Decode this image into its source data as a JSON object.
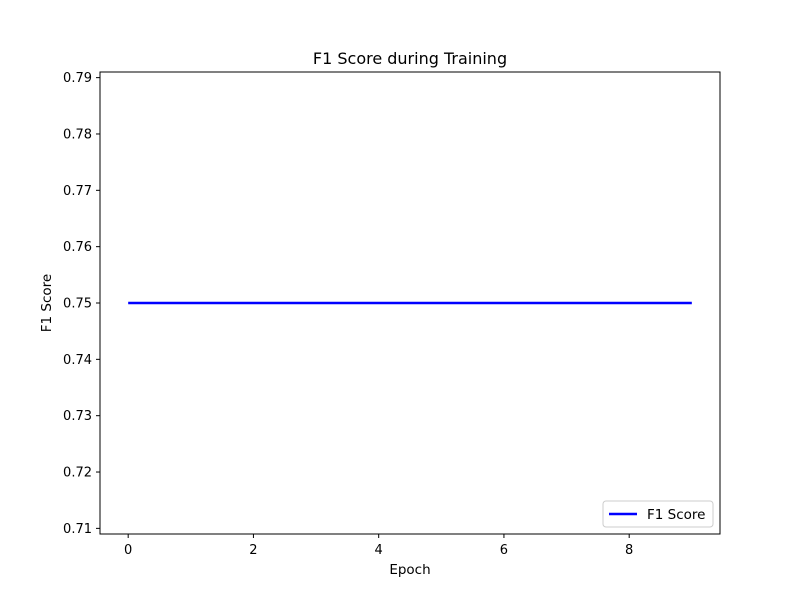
{
  "chart_data": {
    "type": "line",
    "title": "F1 Score during Training",
    "xlabel": "Epoch",
    "ylabel": "F1 Score",
    "x": [
      0,
      1,
      2,
      3,
      4,
      5,
      6,
      7,
      8,
      9
    ],
    "series": [
      {
        "name": "F1 Score",
        "color": "#0000ff",
        "values": [
          0.75,
          0.75,
          0.75,
          0.75,
          0.75,
          0.75,
          0.75,
          0.75,
          0.75,
          0.75
        ]
      }
    ],
    "xlim": [
      -0.45,
      9.45
    ],
    "ylim": [
      0.709,
      0.791
    ],
    "xticks": [
      0,
      2,
      4,
      6,
      8
    ],
    "xtick_labels": [
      "0",
      "2",
      "4",
      "6",
      "8"
    ],
    "yticks": [
      0.71,
      0.72,
      0.73,
      0.74,
      0.75,
      0.76,
      0.77,
      0.78,
      0.79
    ],
    "ytick_labels": [
      "0.71",
      "0.72",
      "0.73",
      "0.74",
      "0.75",
      "0.76",
      "0.77",
      "0.78",
      "0.79"
    ],
    "grid": false,
    "legend": {
      "position": "lower-right",
      "entries": [
        "F1 Score"
      ]
    }
  }
}
